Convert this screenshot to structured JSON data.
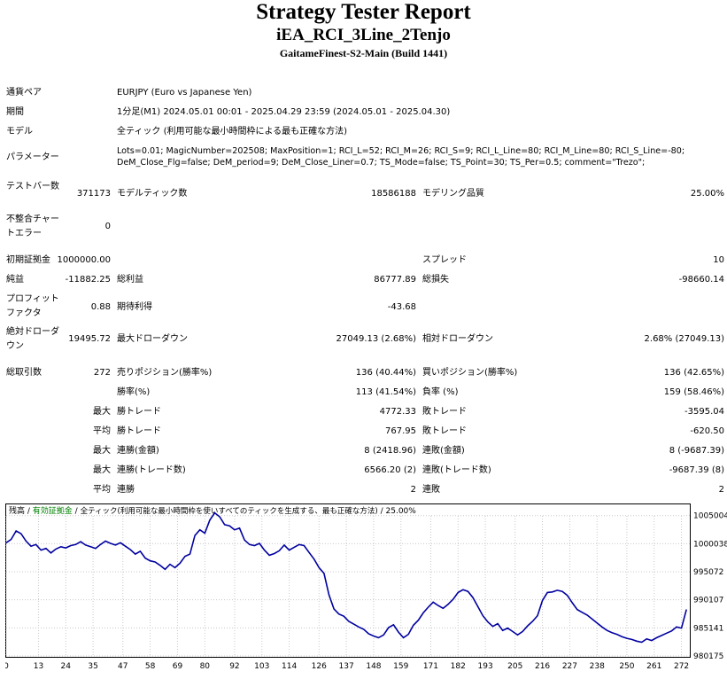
{
  "header": {
    "title": "Strategy Tester Report",
    "ea_name": "iEA_RCI_3Line_2Tenjo",
    "server": "GaitameFinest-S2-Main (Build 1441)"
  },
  "info": {
    "symbol_label": "通貨ペア",
    "symbol_value": "EURJPY (Euro vs Japanese Yen)",
    "period_label": "期間",
    "period_value": "1分足(M1) 2024.05.01 00:01 - 2025.04.29 23:59 (2024.05.01 - 2025.04.30)",
    "model_label": "モデル",
    "model_value": "全ティック (利用可能な最小時間枠による最も正確な方法)",
    "params_label": "パラメーター",
    "params_line1": "Lots=0.01; MagicNumber=202508; MaxPosition=1; RCI_L=52; RCI_M=26; RCI_S=9; RCI_L_Line=80; RCI_M_Line=80; RCI_S_Line=-80;",
    "params_line2": "DeM_Close_Flg=false; DeM_period=9; DeM_Close_Liner=0.7; TS_Mode=false; TS_Point=30; TS_Per=0.5; comment=\"Trezo\";"
  },
  "stats": {
    "bars_label": "テストバー数",
    "bars_value": "371173",
    "ticks_label": "モデルティック数",
    "ticks_value": "18586188",
    "quality_label": "モデリング品質",
    "quality_value": "25.00%",
    "mismatch_label": "不整合チャートエラー",
    "mismatch_value": "0",
    "deposit_label": "初期証拠金",
    "deposit_value": "1000000.00",
    "spread_label": "スプレッド",
    "spread_value": "10",
    "net_label": "純益",
    "net_value": "-11882.25",
    "gross_profit_label": "総利益",
    "gross_profit_value": "86777.89",
    "gross_loss_label": "総損失",
    "gross_loss_value": "-98660.14",
    "pf_label": "プロフィットファクタ",
    "pf_value": "0.88",
    "expected_label": "期待利得",
    "expected_value": "-43.68",
    "abs_dd_label": "絶対ドローダウン",
    "abs_dd_value": "19495.72",
    "max_dd_label": "最大ドローダウン",
    "max_dd_value": "27049.13 (2.68%)",
    "rel_dd_label": "相対ドローダウン",
    "rel_dd_value": "2.68% (27049.13)",
    "trades_label": "総取引数",
    "trades_value": "272",
    "short_label": "売りポジション(勝率%)",
    "short_value": "136 (40.44%)",
    "long_label": "買いポジション(勝率%)",
    "long_value": "136 (42.65%)",
    "winrate_label": "勝率(%)",
    "winrate_value": "113 (41.54%)",
    "lossrate_label": "負率 (%)",
    "lossrate_value": "159 (58.46%)",
    "max_pre": "最大",
    "max_win_label": "勝トレード",
    "max_win_value": "4772.33",
    "max_loss_label": "敗トレード",
    "max_loss_value": "-3595.04",
    "avg_pre": "平均",
    "avg_win_label": "勝トレード",
    "avg_win_value": "767.95",
    "avg_loss_label": "敗トレード",
    "avg_loss_value": "-620.50",
    "max2_pre": "最大",
    "cons_wins_amt_label": "連勝(金額)",
    "cons_wins_amt_value": "8 (2418.96)",
    "cons_losses_amt_label": "連敗(金額)",
    "cons_losses_amt_value": "8 (-9687.39)",
    "max3_pre": "最大",
    "cons_wins_trd_label": "連勝(トレード数)",
    "cons_wins_trd_value": "6566.20 (2)",
    "cons_losses_trd_label": "連敗(トレード数)",
    "cons_losses_trd_value": "-9687.39 (8)",
    "avg2_pre": "平均",
    "avg_cons_wins_label": "連勝",
    "avg_cons_wins_value": "2",
    "avg_cons_losses_label": "連敗",
    "avg_cons_losses_value": "2"
  },
  "chart_data": {
    "type": "line",
    "legend": {
      "balance": "残高",
      "sep1": " / ",
      "equity": "有効証拠金",
      "sep2": " / ",
      "model": "全ティック(利用可能な最小時間枠を使いすべてのティックを生成する、最も正確な方法)",
      "sep3": " / ",
      "quality": "25.00%"
    },
    "colors": {
      "line": "#0000a0",
      "grid": "#c8c8c8",
      "legend_equity": "#008000",
      "border": "#000000"
    },
    "grid": true,
    "ylim": [
      980175,
      1007000
    ],
    "y_ticks": [
      1005004,
      1000038,
      995072,
      990107,
      985141,
      980175
    ],
    "xlim": [
      0,
      275
    ],
    "x_ticks": [
      0,
      13,
      24,
      35,
      47,
      58,
      69,
      80,
      92,
      103,
      114,
      126,
      137,
      148,
      159,
      171,
      182,
      193,
      205,
      216,
      227,
      238,
      250,
      261,
      272
    ],
    "series": [
      {
        "x": [
          0,
          2,
          4,
          6,
          8,
          10,
          12,
          14,
          16,
          18,
          20,
          22,
          24,
          26,
          28,
          30,
          32,
          34,
          36,
          38,
          40,
          42,
          44,
          46,
          48,
          50,
          52,
          54,
          56,
          58,
          60,
          62,
          64,
          66,
          68,
          70,
          72,
          74,
          76,
          78,
          80,
          82,
          84,
          86,
          88,
          90,
          92,
          94,
          96,
          98,
          100,
          102,
          104,
          106,
          108,
          110,
          112,
          114,
          116,
          118,
          120,
          122,
          124,
          126,
          128,
          130,
          132,
          134,
          136,
          138,
          140,
          142,
          144,
          146,
          148,
          150,
          152,
          154,
          156,
          158,
          160,
          162,
          164,
          166,
          168,
          170,
          172,
          174,
          176,
          178,
          180,
          182,
          184,
          186,
          188,
          190,
          192,
          194,
          196,
          198,
          200,
          202,
          204,
          206,
          208,
          210,
          212,
          214,
          216,
          218,
          220,
          222,
          224,
          226,
          228,
          230,
          232,
          234,
          236,
          238,
          240,
          242,
          244,
          246,
          248,
          250,
          252,
          254,
          256,
          258,
          260,
          262,
          264,
          266,
          268,
          270,
          272,
          274
        ],
        "values": [
          1000200,
          1000800,
          1002300,
          1001800,
          1000500,
          999600,
          999900,
          998900,
          999200,
          998400,
          999100,
          999500,
          999300,
          999700,
          999900,
          1000400,
          999800,
          999500,
          999200,
          999900,
          1000500,
          1000100,
          999800,
          1000200,
          999600,
          999000,
          998200,
          998700,
          997500,
          997000,
          996800,
          996200,
          995500,
          996400,
          995800,
          996600,
          997800,
          998200,
          1001500,
          1002500,
          1001900,
          1004200,
          1005500,
          1004800,
          1003400,
          1003200,
          1002500,
          1002800,
          1000700,
          999900,
          999700,
          1000100,
          998900,
          998000,
          998300,
          998800,
          999800,
          998900,
          999400,
          999900,
          999700,
          998500,
          997300,
          995800,
          994800,
          991000,
          988500,
          987600,
          987200,
          986300,
          985800,
          985300,
          984900,
          984100,
          983700,
          983400,
          983900,
          985200,
          985700,
          984400,
          983400,
          984000,
          985600,
          986500,
          987800,
          988800,
          989700,
          989100,
          988600,
          989300,
          990200,
          991400,
          991900,
          991600,
          990500,
          988900,
          987300,
          986200,
          985400,
          985900,
          984700,
          985100,
          984500,
          983900,
          984500,
          985500,
          986300,
          987300,
          990000,
          991400,
          991500,
          991800,
          991600,
          990900,
          989600,
          988400,
          987900,
          987400,
          986700,
          986000,
          985300,
          984700,
          984300,
          984000,
          983600,
          983300,
          983100,
          982800,
          982600,
          983200,
          982900,
          983400,
          983800,
          984200,
          984600,
          985300,
          985100,
          988400
        ]
      }
    ]
  }
}
